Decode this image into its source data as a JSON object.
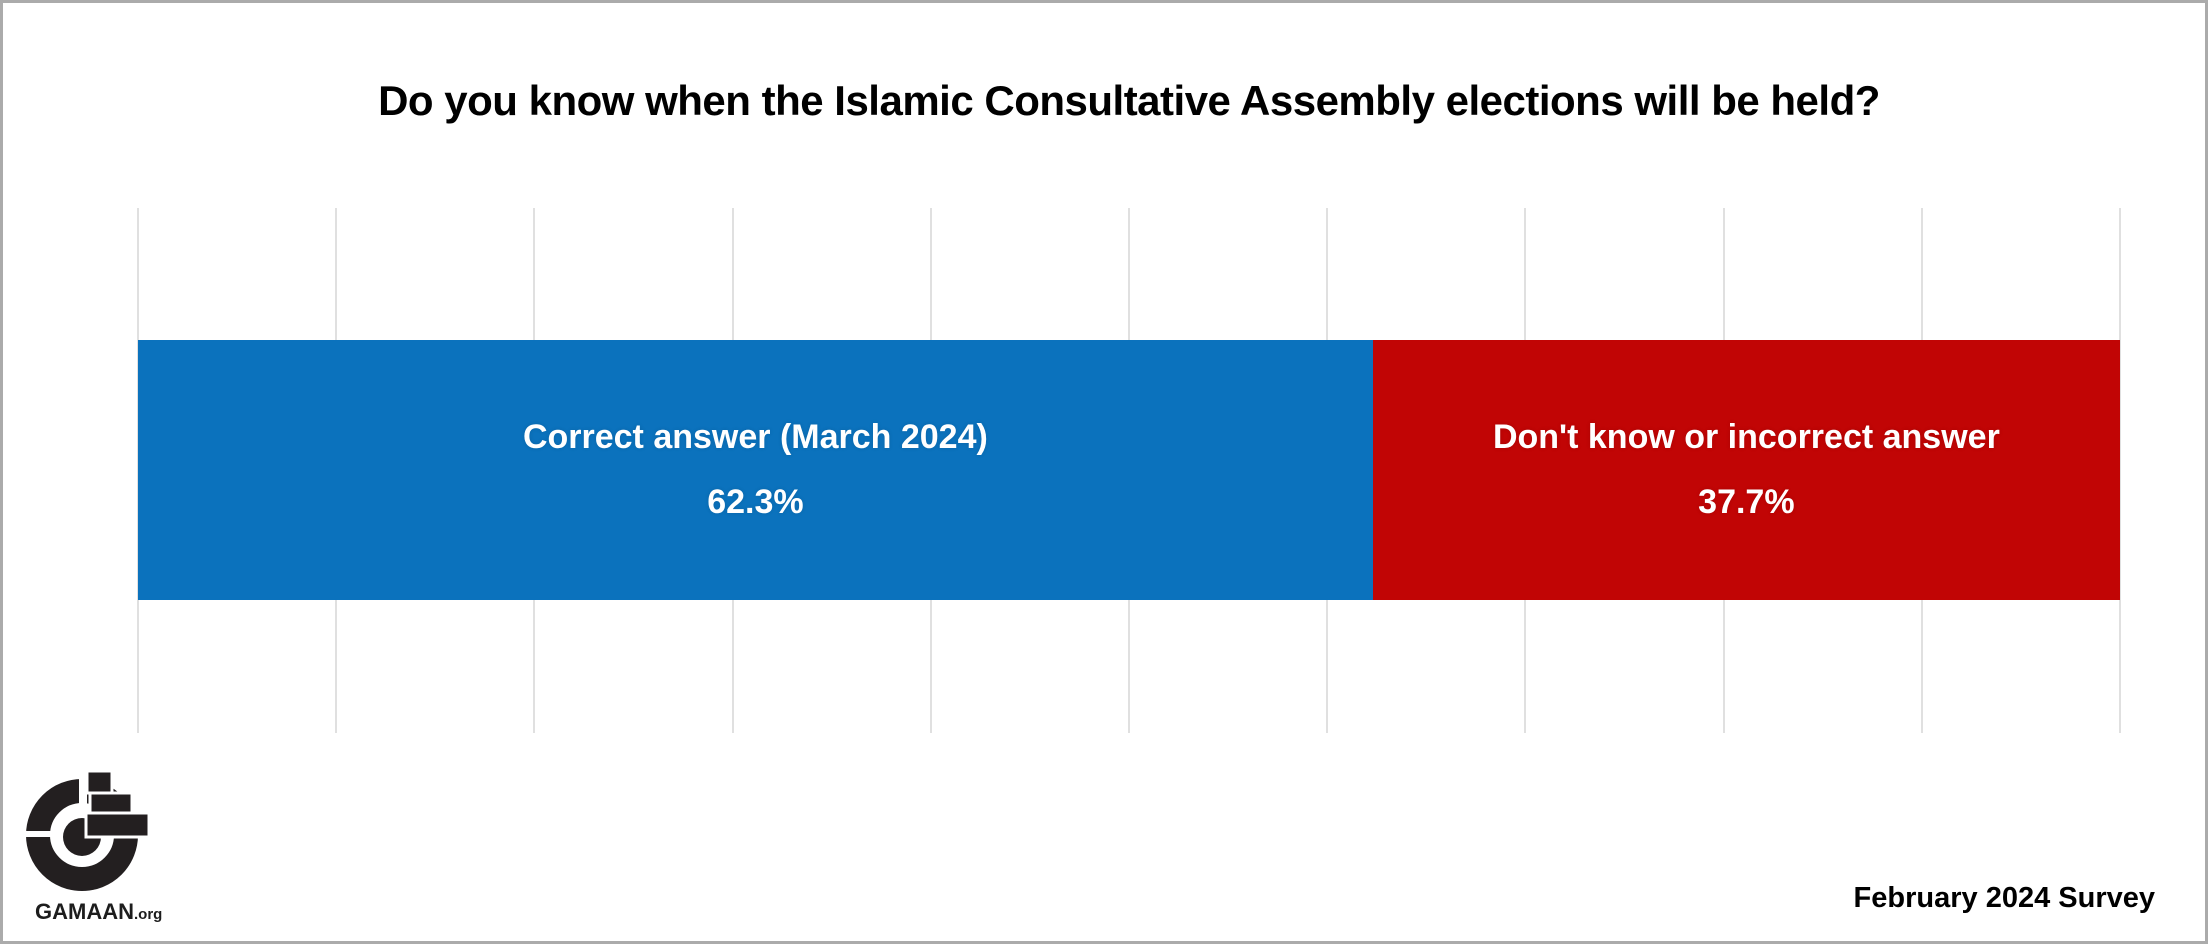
{
  "page": {
    "background": "#ffffff",
    "border_color": "#ababab"
  },
  "header": {
    "title": "Do you know when the Islamic Consultative Assembly elections will be held?"
  },
  "chart_data": {
    "type": "bar",
    "orientation": "horizontal",
    "stacked": true,
    "title": "Do you know when the Islamic Consultative Assembly elections will be held?",
    "categories": [
      ""
    ],
    "series": [
      {
        "name": "Correct answer (March 2024)",
        "values": [
          62.3
        ],
        "display_value": "62.3%",
        "color": "#0b72bd"
      },
      {
        "name": "Don't know or incorrect answer",
        "values": [
          37.7
        ],
        "display_value": "37.7%",
        "color": "#c10505"
      }
    ],
    "xlim": [
      0,
      100
    ],
    "axis_labels_shown": false,
    "legend": "none",
    "value_labels": "inside",
    "value_label_color": "#ffffff",
    "gridlines": {
      "show": true,
      "count": 11,
      "interval_pct": 10,
      "color": "#e0e0e0"
    }
  },
  "footer": {
    "logo": {
      "name": "GAMAAN",
      "suffix": ".org",
      "icon": "gamaan-g-logo",
      "color": "#231f20"
    },
    "note": "February 2024 Survey"
  }
}
